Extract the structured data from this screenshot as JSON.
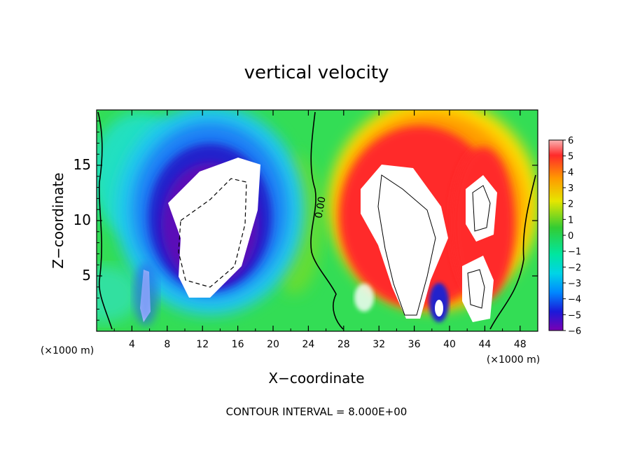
{
  "chart_data": {
    "type": "heatmap",
    "title": "vertical velocity",
    "xlabel": "X−coordinate",
    "ylabel": "Z−coordinate",
    "x_unit_left": "(×1000 m)",
    "x_unit_right": "(×1000 m)",
    "xlim": [
      0,
      50
    ],
    "ylim": [
      0,
      20
    ],
    "x_ticks": [
      "4",
      "8",
      "12",
      "16",
      "20",
      "24",
      "28",
      "32",
      "36",
      "40",
      "44",
      "48"
    ],
    "y_ticks": [
      "5",
      "10",
      "15"
    ],
    "contour_interval_text": "CONTOUR INTERVAL = 8.000E+00",
    "contour_label": "0.00",
    "colorbar": {
      "ticks": [
        "6",
        "5",
        "4",
        "3",
        "2",
        "1",
        "0",
        "−1",
        "−2",
        "−3",
        "−4",
        "−5",
        "−6"
      ],
      "range": [
        -6,
        6
      ]
    },
    "features": [
      {
        "kind": "downdraft",
        "x": 13.5,
        "z": 9.5,
        "value": -6
      },
      {
        "kind": "downdraft",
        "x": 5.8,
        "z": 3.5,
        "value": -6
      },
      {
        "kind": "updraft",
        "x": 35,
        "z": 8,
        "value": 6
      },
      {
        "kind": "updraft",
        "x": 43.5,
        "z": 7,
        "value": 6
      },
      {
        "kind": "downdraft",
        "x": 38.8,
        "z": 2,
        "value": -5
      }
    ]
  }
}
